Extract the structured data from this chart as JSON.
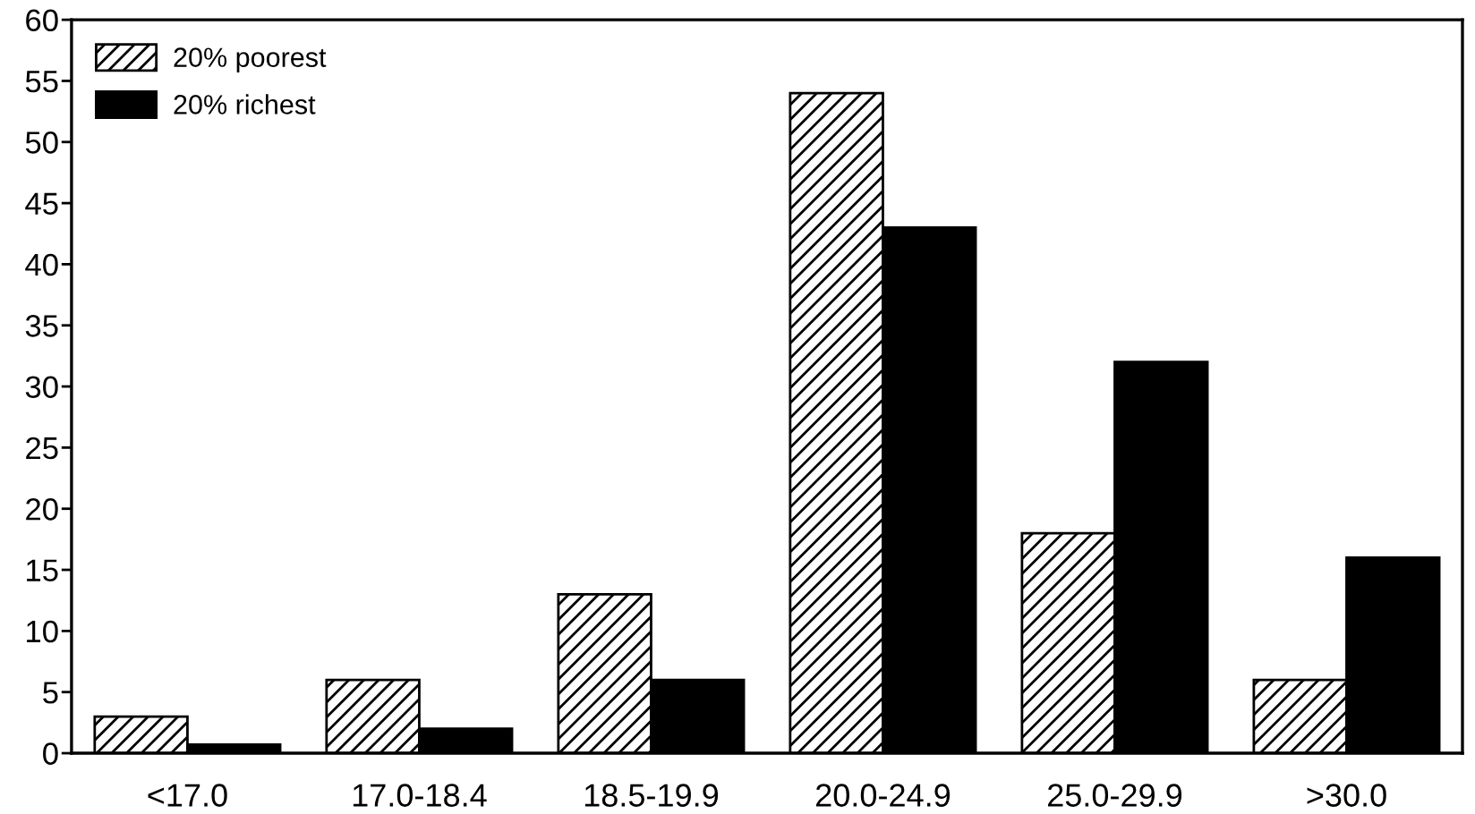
{
  "chart_data": {
    "type": "bar",
    "categories": [
      "<17.0",
      "17.0-18.4",
      "18.5-19.9",
      "20.0-24.9",
      "25.0-29.9",
      ">30.0"
    ],
    "series": [
      {
        "name": "20% poorest",
        "color": "#000000",
        "values": [
          3,
          6,
          13,
          54,
          18,
          6
        ]
      },
      {
        "name": "20% richest",
        "color": "#000000",
        "values": [
          0.7,
          2,
          6,
          43,
          32,
          16
        ]
      }
    ],
    "ylim": [
      0,
      60
    ],
    "yticks": [
      0,
      5,
      10,
      15,
      20,
      25,
      30,
      35,
      40,
      45,
      50,
      55,
      60
    ],
    "legend": "top left"
  }
}
